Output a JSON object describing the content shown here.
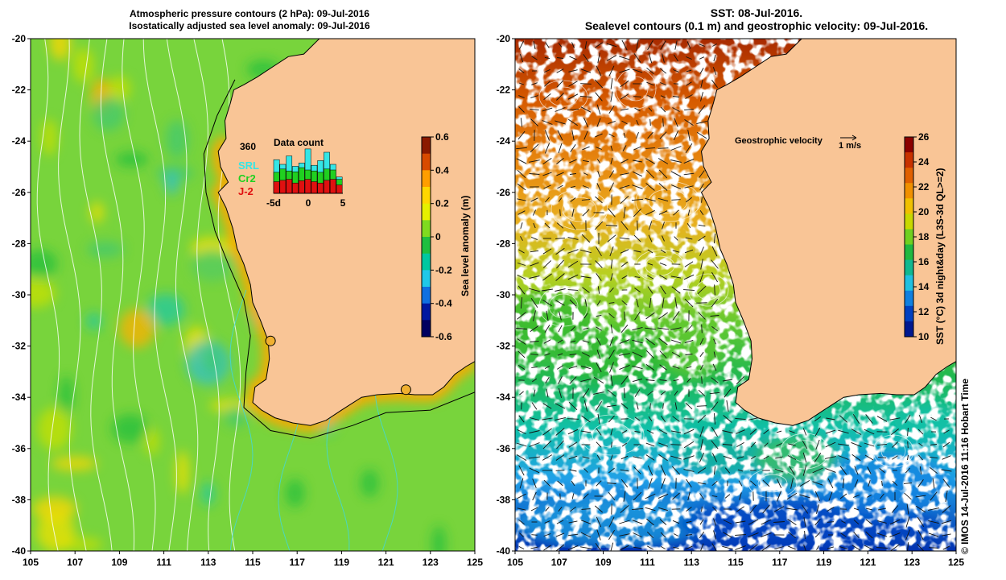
{
  "left_panel": {
    "title_line1": "Atmospheric pressure contours (2 hPa): 09-Jul-2016",
    "title_line2": "Isostatically adjusted sea level anomaly: 09-Jul-2016",
    "colorbar": {
      "label": "Sea level anomaly (m)",
      "ticks": [
        "0.6",
        "0.4",
        "0.2",
        "0",
        "-0.2",
        "-0.4",
        "-0.6"
      ],
      "colors": [
        "#8b1a00",
        "#d84a00",
        "#ff9e00",
        "#ffd700",
        "#e6f000",
        "#7fdb1f",
        "#1fbf3f",
        "#00c8a0",
        "#20c8e8",
        "#1070e0",
        "#0018a0",
        "#000060"
      ]
    },
    "data_count": {
      "title": "Data count",
      "max_label": "360",
      "series": [
        {
          "name": "SRL",
          "color": "#33e6e6"
        },
        {
          "name": "Cr2",
          "color": "#20d020"
        },
        {
          "name": "J-2",
          "color": "#e01010"
        }
      ],
      "x_ticks": [
        "-5d",
        "0",
        "5"
      ],
      "bars": [
        {
          "j2": 0.25,
          "cr2": 0.45,
          "srl": 0.72
        },
        {
          "j2": 0.28,
          "cr2": 0.52,
          "srl": 0.62
        },
        {
          "j2": 0.3,
          "cr2": 0.48,
          "srl": 0.8
        },
        {
          "j2": 0.22,
          "cr2": 0.46,
          "srl": 0.58
        },
        {
          "j2": 0.27,
          "cr2": 0.55,
          "srl": 0.65
        },
        {
          "j2": 0.3,
          "cr2": 0.5,
          "srl": 0.95
        },
        {
          "j2": 0.25,
          "cr2": 0.48,
          "srl": 0.6
        },
        {
          "j2": 0.22,
          "cr2": 0.45,
          "srl": 0.7
        },
        {
          "j2": 0.28,
          "cr2": 0.52,
          "srl": 0.88
        },
        {
          "j2": 0.3,
          "cr2": 0.5,
          "srl": 0.62
        },
        {
          "j2": 0.18,
          "cr2": 0.3,
          "srl": 0.35
        }
      ]
    },
    "tide_gauges": [
      {
        "lon": 115.8,
        "lat": -31.8
      },
      {
        "lon": 121.9,
        "lat": -33.7
      }
    ]
  },
  "right_panel": {
    "title_line1": "SST: 08-Jul-2016.",
    "title_line2": "Sealevel contours (0.1 m) and geostrophic velocity: 09-Jul-2016.",
    "velocity_legend": "Geostrophic velocity",
    "velocity_scale": "1 m/s",
    "colorbar": {
      "label": "SST (°C) 3d night&day (L3S-3d QL>=2)",
      "ticks": [
        "26",
        "24",
        "22",
        "20",
        "18",
        "16",
        "14",
        "12",
        "10"
      ],
      "colors": [
        "#8b0000",
        "#c83200",
        "#e06000",
        "#f09000",
        "#f0c000",
        "#c8d800",
        "#70d020",
        "#20b840",
        "#10b890",
        "#20c0e0",
        "#1080e0",
        "#0040c0",
        "#001890"
      ]
    }
  },
  "axes": {
    "lon_ticks": [
      "105",
      "107",
      "109",
      "111",
      "113",
      "115",
      "117",
      "119",
      "121",
      "123",
      "125"
    ],
    "lat_ticks": [
      "-20",
      "-22",
      "-24",
      "-26",
      "-28",
      "-30",
      "-32",
      "-34",
      "-36",
      "-38",
      "-40"
    ]
  },
  "credit": "© IMOS 14-Jul-2016 11:16 Hobart Time",
  "colors": {
    "land": "#f9c596",
    "ocean_left": "#7cd640",
    "ocean_right_default": "#ffffff"
  }
}
